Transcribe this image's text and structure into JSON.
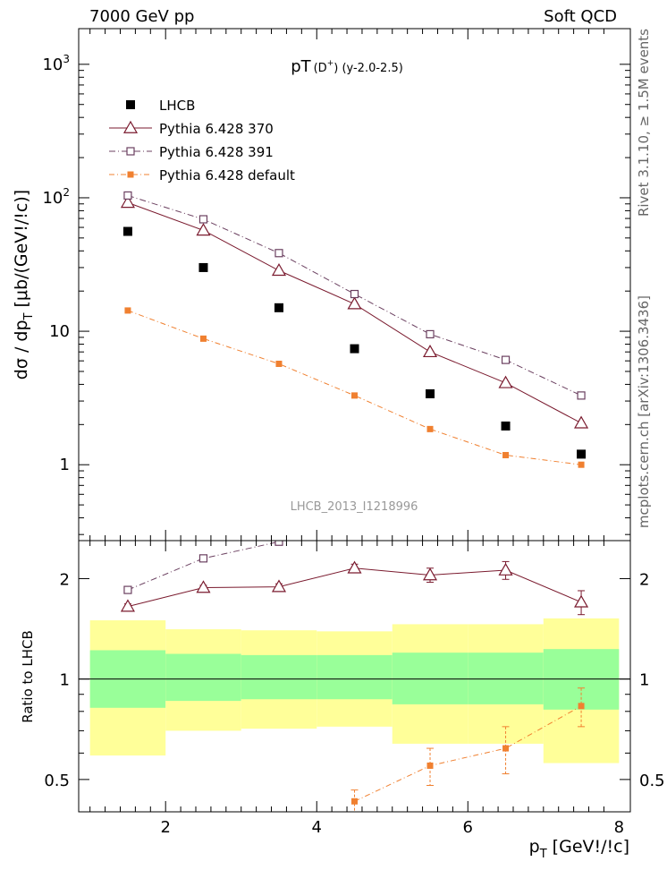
{
  "header": {
    "left": "7000 GeV pp",
    "right": "Soft QCD"
  },
  "side_labels": {
    "top": "Rivet 3.1.10, ≥ 1.5M events",
    "bottom": "mcplots.cern.ch [arXiv:1306.3436]"
  },
  "colors": {
    "lhcb": "#000000",
    "p370": "#7a1a2e",
    "p391": "#6b4060",
    "pdefault": "#f08030",
    "band_inner": "#99ff99",
    "band_outer": "#ffff99"
  },
  "chart_data": [
    {
      "type": "scatter",
      "panel": "main",
      "title": "pT(D⁺) (y-2.0-2.5)",
      "title_main": "pT",
      "title_paren": "(D",
      "title_sup": "+",
      "title_tail": ") (y-2.0-2.5)",
      "ylabel": "dσ / dp_T [μb/(GeV!/!c)]",
      "ylabel_main": "dσ / dp",
      "ylabel_sub": "T",
      "ylabel_tail": " [μb/(GeV!/!c)]",
      "yscale": "log",
      "xlim": [
        0.85,
        8.15
      ],
      "ylim": [
        0.27,
        1850
      ],
      "yticks": [
        {
          "value": 1,
          "label": "1"
        },
        {
          "value": 10,
          "label": "10"
        },
        {
          "value": 100,
          "label": "10",
          "sup": "2"
        },
        {
          "value": 1000,
          "label": "10",
          "sup": "3"
        }
      ],
      "watermark": "LHCB_2013_I1218996",
      "legend_position": "top-left",
      "series": [
        {
          "name": "LHCB",
          "key": "lhcb",
          "style": "data",
          "x": [
            1.5,
            2.5,
            3.5,
            4.5,
            5.5,
            6.5,
            7.5
          ],
          "y": [
            56,
            30,
            15,
            7.4,
            3.4,
            1.95,
            1.2
          ]
        },
        {
          "name": "Pythia 6.428 370",
          "key": "p370",
          "style": "triangle",
          "x": [
            1.5,
            2.5,
            3.5,
            4.5,
            5.5,
            6.5,
            7.5
          ],
          "y": [
            92,
            57,
            28.5,
            16,
            7,
            4.1,
            2.05
          ]
        },
        {
          "name": "Pythia 6.428 391",
          "key": "p391",
          "style": "square-open",
          "x": [
            1.5,
            2.5,
            3.5,
            4.5,
            5.5,
            6.5,
            7.5
          ],
          "y": [
            104,
            69,
            38.5,
            19,
            9.5,
            6.1,
            3.3
          ]
        },
        {
          "name": "Pythia 6.428 default",
          "key": "pdefault",
          "style": "square-filled",
          "x": [
            1.5,
            2.5,
            3.5,
            4.5,
            5.5,
            6.5,
            7.5
          ],
          "y": [
            14.3,
            8.8,
            5.7,
            3.3,
            1.85,
            1.18,
            1.0
          ]
        }
      ]
    },
    {
      "type": "scatter",
      "panel": "ratio",
      "ylabel": "Ratio to LHCB",
      "yscale": "log",
      "xlabel": "p_T [GeV!/!c]",
      "xlabel_main": "p",
      "xlabel_sub": "T",
      "xlabel_tail": " [GeV!/!c]",
      "xlim": [
        0.85,
        8.15
      ],
      "ylim": [
        0.4,
        2.6
      ],
      "xticks": [
        2,
        4,
        6,
        8
      ],
      "yticks": [
        {
          "value": 0.5,
          "label": "0.5"
        },
        {
          "value": 1,
          "label": "1"
        },
        {
          "value": 2,
          "label": "2"
        }
      ],
      "bands": {
        "x_edges": [
          1,
          2,
          3,
          4,
          5,
          6,
          7,
          8
        ],
        "inner_low": [
          0.82,
          0.86,
          0.87,
          0.87,
          0.84,
          0.84,
          0.81
        ],
        "inner_high": [
          1.22,
          1.19,
          1.18,
          1.18,
          1.2,
          1.2,
          1.23
        ],
        "outer_low": [
          0.59,
          0.7,
          0.71,
          0.72,
          0.64,
          0.64,
          0.56
        ],
        "outer_high": [
          1.5,
          1.41,
          1.4,
          1.39,
          1.46,
          1.46,
          1.52
        ]
      },
      "series": [
        {
          "name": "Pythia 6.428 370",
          "key": "p370",
          "style": "triangle",
          "x": [
            1.5,
            2.5,
            3.5,
            4.5,
            5.5,
            6.5,
            7.5
          ],
          "y": [
            1.65,
            1.88,
            1.89,
            2.15,
            2.05,
            2.12,
            1.7
          ],
          "err": [
            0.03,
            0.03,
            0.04,
            0.06,
            0.1,
            0.13,
            0.14
          ]
        },
        {
          "name": "Pythia 6.428 391",
          "key": "p391",
          "style": "square-open",
          "x": [
            1.5,
            2.5,
            3.5
          ],
          "y": [
            1.85,
            2.3,
            2.58
          ],
          "err": [
            0.02,
            0.03,
            0.03
          ]
        },
        {
          "name": "Pythia 6.428 default",
          "key": "pdefault",
          "style": "square-filled",
          "x": [
            4.5,
            5.5,
            6.5,
            7.5
          ],
          "y": [
            0.43,
            0.55,
            0.62,
            0.83
          ],
          "err": [
            0.035,
            0.07,
            0.1,
            0.11
          ]
        }
      ]
    }
  ]
}
